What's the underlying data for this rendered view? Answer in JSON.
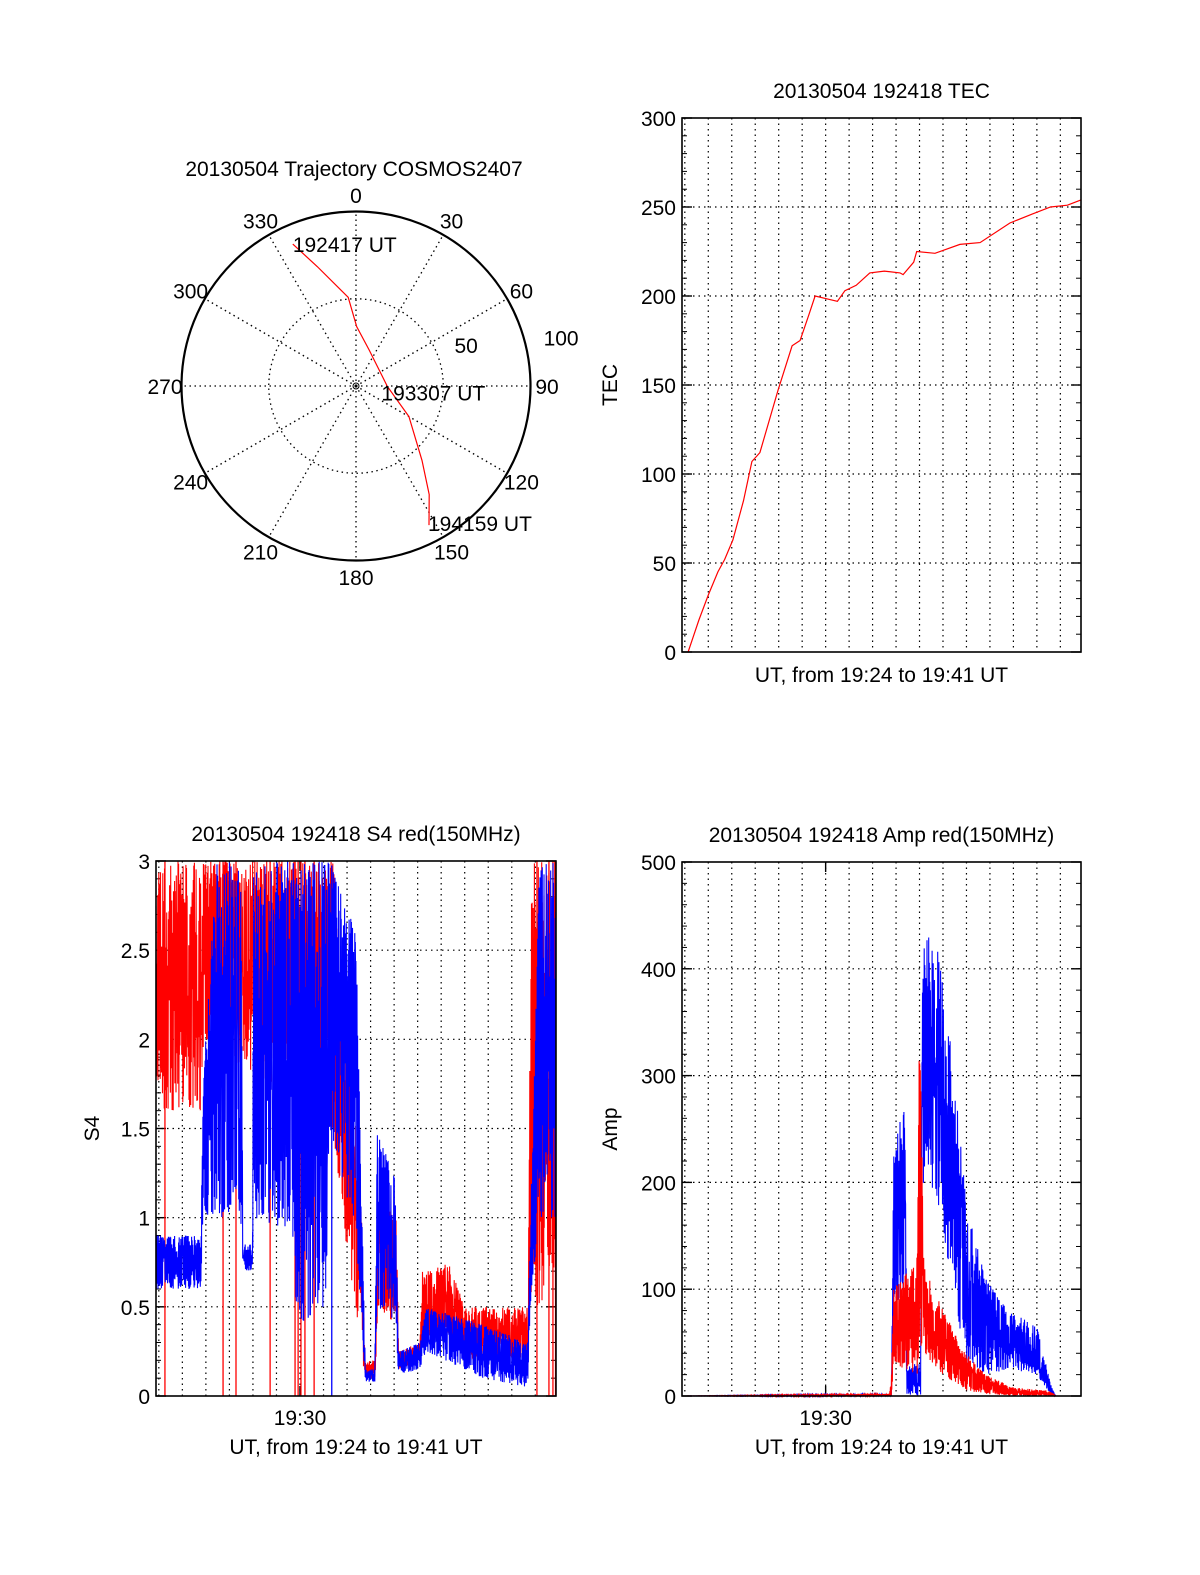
{
  "chart_data": [
    {
      "id": "polar",
      "type": "scatter",
      "projection": "polar",
      "title": "20130504 Trajectory COSMOS2407",
      "angle_labels": [
        "0",
        "30",
        "60",
        "90",
        "120",
        "150",
        "180",
        "210",
        "240",
        "270",
        "300",
        "330"
      ],
      "radial_ticks": [
        {
          "value": 50,
          "label": "50"
        },
        {
          "value": 100,
          "label": "100"
        }
      ],
      "rlim": [
        0,
        100
      ],
      "series": [
        {
          "name": "trajectory",
          "color": "#ff0000",
          "azimuth_deg": [
            336,
            342,
            355,
            0.7,
            20,
            91,
            120,
            138.4,
            146,
            152.3
          ],
          "radius": [
            89,
            72,
            51,
            34,
            22,
            18,
            35,
            57,
            75,
            90
          ]
        }
      ],
      "annotations": [
        {
          "text": "192417 UT",
          "azimuth_deg": 336,
          "radius": 89
        },
        {
          "text": "193307 UT",
          "azimuth_deg": 91,
          "radius": 18
        },
        {
          "text": "194159 UT",
          "azimuth_deg": 152.3,
          "radius": 90
        }
      ]
    },
    {
      "id": "tec",
      "type": "line",
      "title": "20130504 192418 TEC",
      "xlabel": "UT, from 19:24 to 19:41 UT",
      "ylabel": "TEC",
      "x_units": "minutes after 19:00",
      "xlim": [
        23.88,
        40.88
      ],
      "ylim": [
        0,
        300
      ],
      "yticks": [
        0,
        50,
        100,
        150,
        200,
        250,
        300
      ],
      "ytick_labels": [
        "0",
        "50",
        "100",
        "150",
        "200",
        "250",
        "300"
      ],
      "grid": true,
      "series": [
        {
          "name": "TEC",
          "color": "#ff0000",
          "x": [
            24.14,
            24.6,
            25.0,
            25.41,
            25.7,
            26.05,
            26.5,
            26.86,
            27.2,
            27.97,
            28.57,
            28.91,
            29.3,
            29.55,
            30.18,
            30.5,
            30.82,
            31.3,
            31.88,
            32.5,
            33.17,
            33.3,
            33.75,
            33.88,
            34.66,
            35.72,
            36.58,
            37.85,
            38.8,
            39.58,
            40.3,
            40.88
          ],
          "y": [
            0,
            18,
            32,
            45,
            52,
            63,
            85,
            107,
            112,
            147,
            172,
            175,
            190,
            200,
            198,
            197,
            203,
            206,
            213,
            214,
            213,
            212,
            219,
            225,
            224,
            229,
            230,
            241,
            246,
            250,
            251,
            254
          ]
        }
      ]
    },
    {
      "id": "s4",
      "type": "line",
      "title": "20130504 192418 S4 red(150MHz)",
      "xlabel": "UT, from 19:24 to 19:41 UT",
      "ylabel": "S4",
      "x_units": "minutes after 19:00",
      "xlim": [
        23.88,
        40.88
      ],
      "ylim": [
        0,
        3
      ],
      "yticks": [
        0,
        0.5,
        1,
        1.5,
        2,
        2.5,
        3
      ],
      "ytick_labels": [
        "0",
        "0.5",
        "1",
        "1.5",
        "2",
        "2.5",
        "3"
      ],
      "xticks": [
        30
      ],
      "xtick_labels": [
        "19:30"
      ],
      "grid": true,
      "series": [
        {
          "name": "S4 red",
          "color": "#ff0000",
          "envelope": {
            "t": [
              23.88,
              25.8,
              25.9,
              31.4,
              32.0,
              32.6,
              32.75,
              33.2,
              33.3,
              34.1,
              34.2,
              35.1,
              35.2,
              36.3,
              37.0,
              39.7,
              39.8,
              40.88
            ],
            "lo": [
              1.6,
              1.6,
              2.0,
              1.5,
              0.8,
              0.3,
              0.1,
              0.1,
              0.5,
              0.4,
              0.15,
              0.2,
              0.3,
              0.35,
              0.2,
              0.2,
              0.5,
              0.5
            ],
            "hi": [
              3,
              3,
              3,
              3,
              2.0,
              1.2,
              0.2,
              0.2,
              1.1,
              1.0,
              0.25,
              0.3,
              0.7,
              0.75,
              0.5,
              0.5,
              3,
              3
            ]
          },
          "dropouts_t": [
            24.26,
            26.73,
            27.28,
            28.73,
            29.79,
            29.92,
            30.04,
            30.21,
            30.6,
            40.07,
            40.58,
            40.75,
            40.86
          ]
        },
        {
          "name": "S4 blue",
          "color": "#0000ff",
          "envelope": {
            "t": [
              23.88,
              25.78,
              25.88,
              26.38,
              27.48,
              27.58,
              27.98,
              28.03,
              29.58,
              29.88,
              31.18,
              31.28,
              32.38,
              32.78,
              33.18,
              33.28,
              34.08,
              34.18,
              35.08,
              35.38,
              37.78,
              39.68,
              39.78,
              40.18,
              40.88
            ],
            "lo": [
              0.6,
              0.6,
              1.0,
              1.0,
              1.0,
              0.7,
              0.7,
              1.0,
              0.9,
              0.4,
              0.5,
              1.5,
              0.9,
              0.08,
              0.08,
              0.5,
              0.4,
              0.12,
              0.15,
              0.25,
              0.1,
              0.05,
              0.5,
              1.0,
              1.0
            ],
            "hi": [
              0.9,
              0.9,
              1.7,
              3,
              3,
              0.85,
              0.85,
              3,
              3,
              3,
              3,
              3,
              2.6,
              0.15,
              0.15,
              1.5,
              1.2,
              0.25,
              0.3,
              0.5,
              0.4,
              0.3,
              0.9,
              3,
              3
            ]
          },
          "dropouts_t": [
            31.35
          ]
        }
      ]
    },
    {
      "id": "amp",
      "type": "line",
      "title": "20130504 192418 Amp red(150MHz)",
      "xlabel": "UT, from 19:24 to 19:41 UT",
      "ylabel": "Amp",
      "x_units": "minutes after 19:00",
      "xlim": [
        23.88,
        40.88
      ],
      "ylim": [
        0,
        500
      ],
      "yticks": [
        0,
        100,
        200,
        300,
        400,
        500
      ],
      "ytick_labels": [
        "0",
        "100",
        "200",
        "300",
        "400",
        "500"
      ],
      "xticks": [
        30
      ],
      "xtick_labels": [
        "19:30"
      ],
      "grid": true,
      "series": [
        {
          "name": "Amp blue",
          "color": "#0000ff",
          "envelope": {
            "t": [
              23.88,
              32.8,
              32.9,
              33.4,
              33.45,
              34.05,
              34.1,
              34.8,
              35.5,
              36.0,
              36.8,
              37.8,
              39.0,
              39.6,
              39.8,
              40.88
            ],
            "lo": [
              0,
              0,
              80,
              100,
              0,
              0,
              200,
              180,
              90,
              30,
              20,
              25,
              20,
              0,
              0,
              0
            ],
            "hi": [
              0,
              2,
              230,
              280,
              30,
              30,
              440,
              420,
              300,
              180,
              110,
              80,
              65,
              10,
              0,
              0
            ]
          }
        },
        {
          "name": "Amp red",
          "color": "#ff0000",
          "envelope": {
            "t": [
              23.88,
              32.7,
              32.8,
              32.9,
              33.9,
              34.0,
              34.2,
              35.0,
              36.0,
              36.8,
              38.0,
              39.5,
              39.8,
              40.88
            ],
            "lo": [
              0,
              0,
              0,
              30,
              20,
              50,
              40,
              20,
              5,
              2,
              0,
              0,
              0,
              0
            ],
            "hi": [
              0,
              2,
              15,
              100,
              130,
              350,
              120,
              80,
              40,
              20,
              8,
              5,
              0,
              0
            ]
          }
        }
      ]
    }
  ]
}
